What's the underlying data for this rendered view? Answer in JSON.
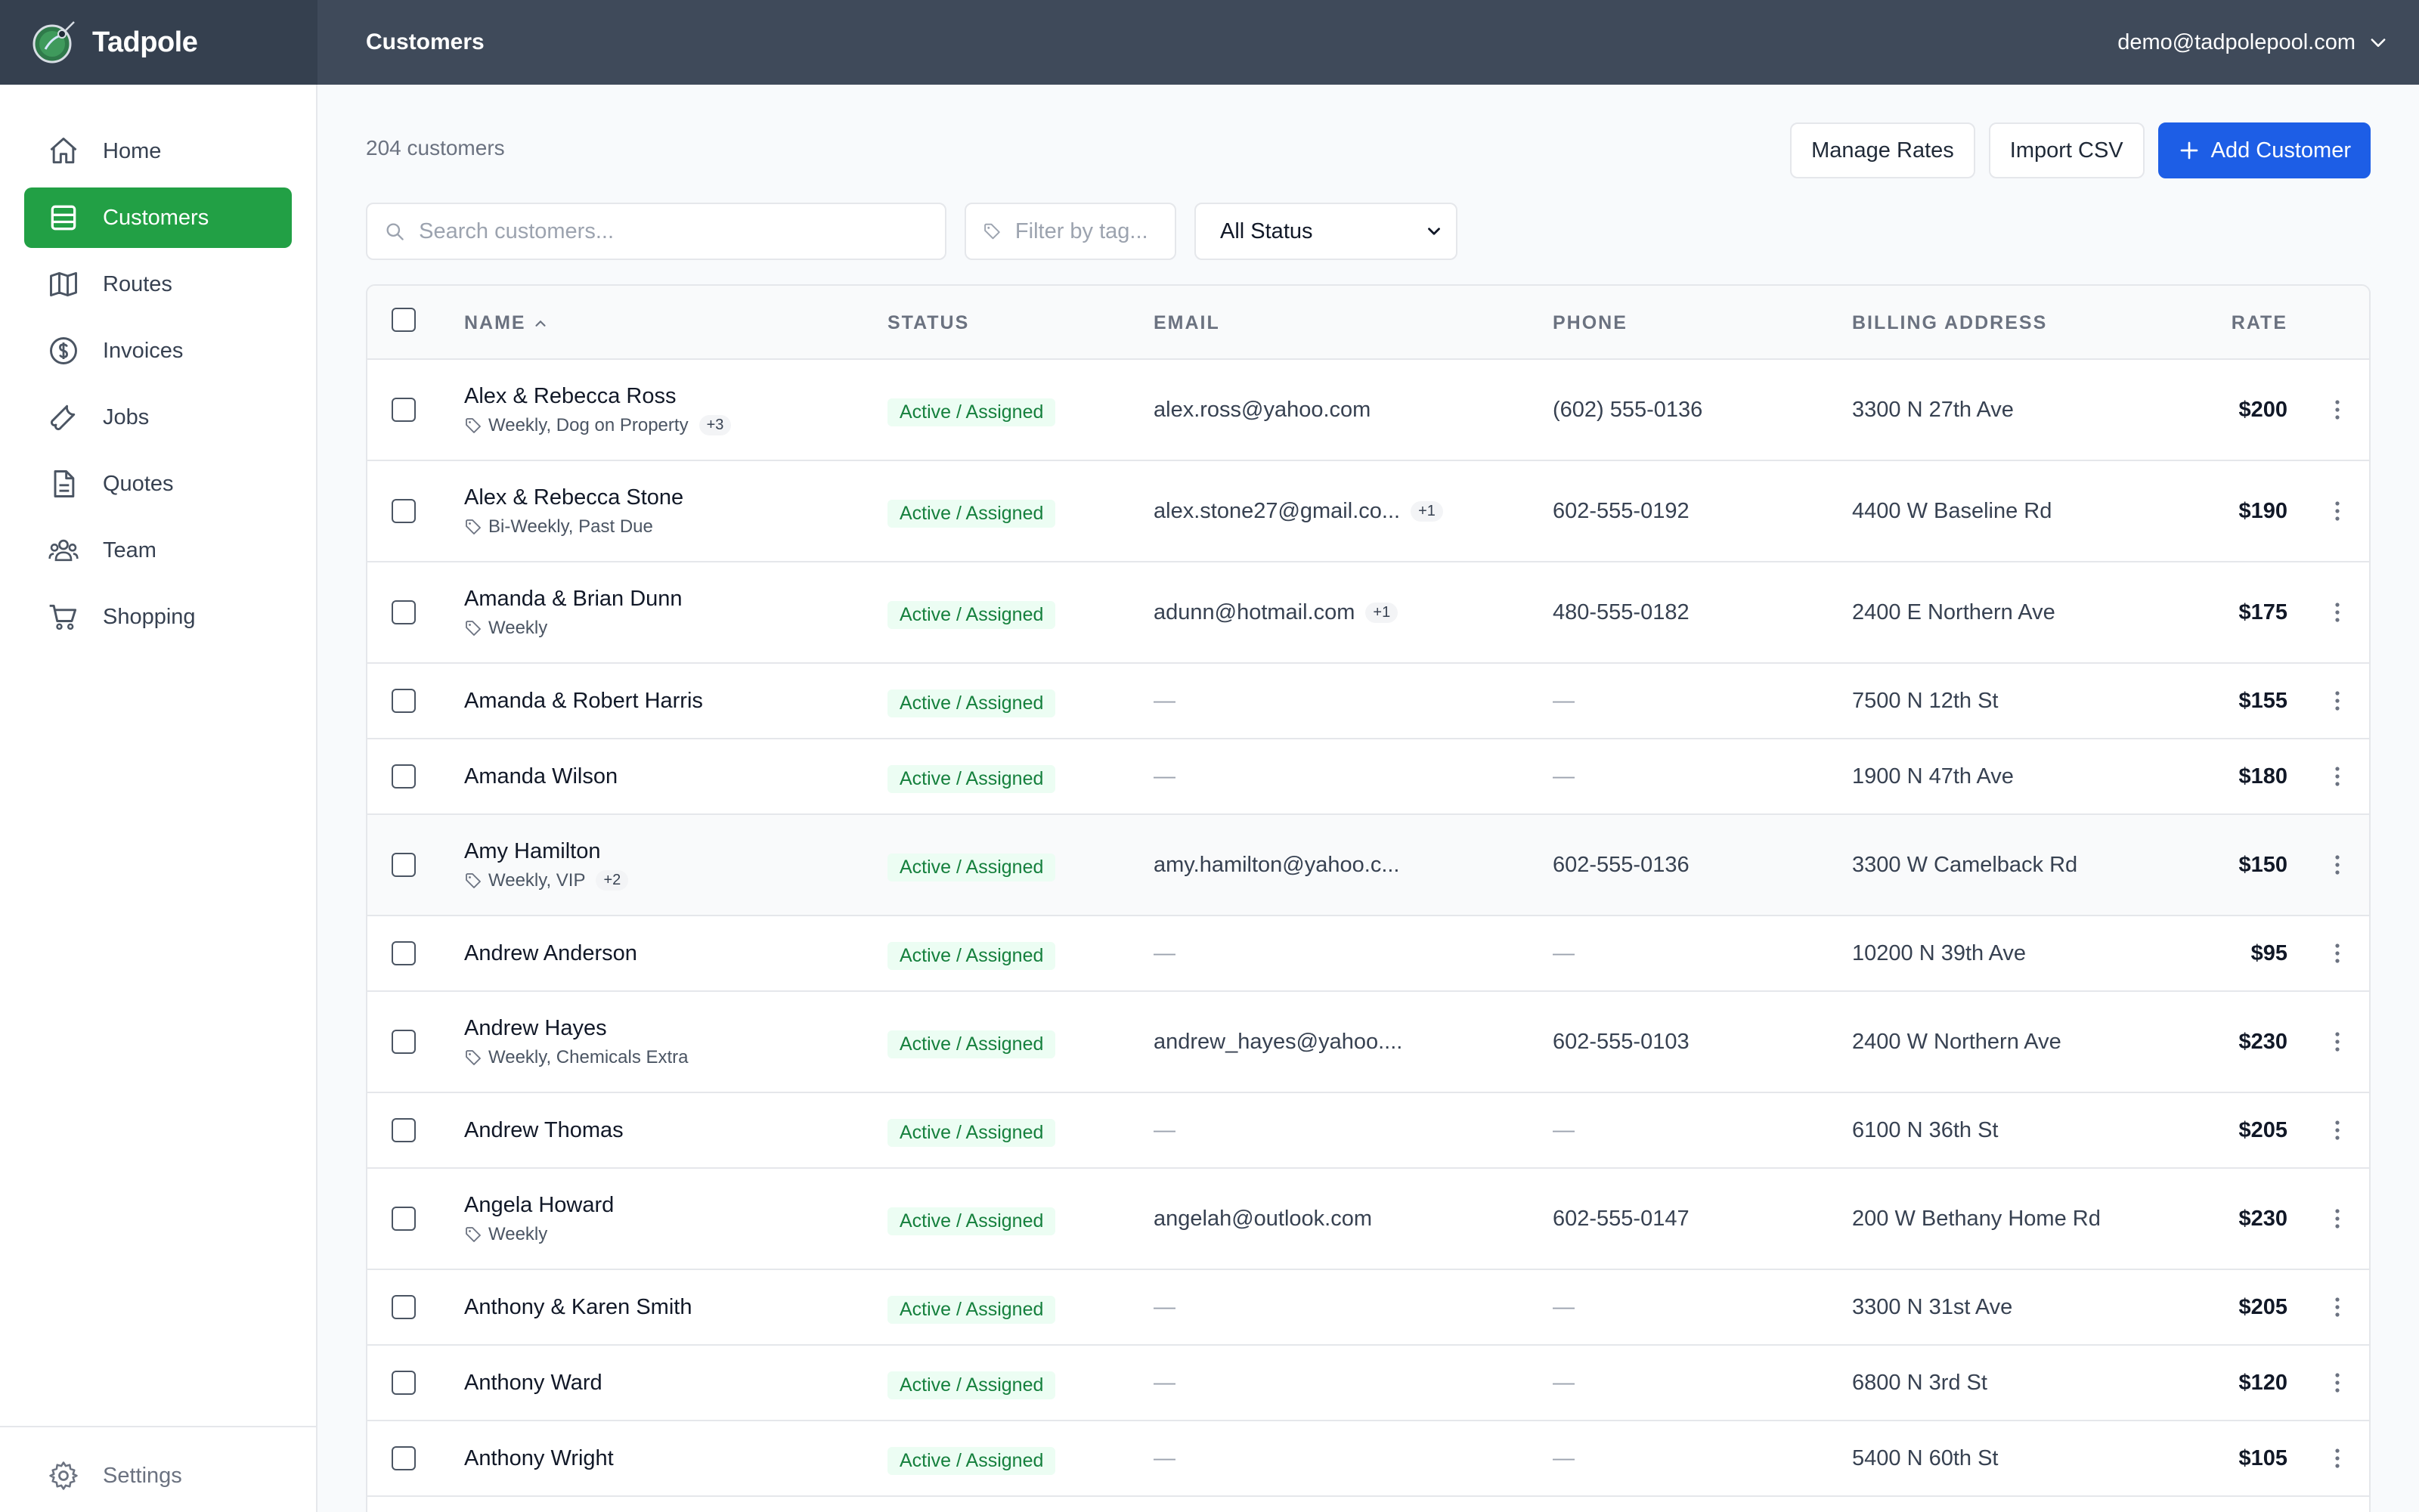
{
  "app": {
    "name": "Tadpole",
    "page_title": "Customers",
    "user_email": "demo@tadpolepool.com"
  },
  "colors": {
    "topbar": "#3f4a5a",
    "brand_bg": "#35404f",
    "active_nav": "#22a045",
    "primary": "#1d5ee6",
    "status_text": "#15803d",
    "status_bg": "#ecfdf3"
  },
  "sidebar": {
    "items": [
      {
        "label": "Home",
        "icon": "home-icon"
      },
      {
        "label": "Customers",
        "icon": "customers-icon",
        "active": true
      },
      {
        "label": "Routes",
        "icon": "map-icon"
      },
      {
        "label": "Invoices",
        "icon": "dollar-icon"
      },
      {
        "label": "Jobs",
        "icon": "wrench-icon"
      },
      {
        "label": "Quotes",
        "icon": "document-icon"
      },
      {
        "label": "Team",
        "icon": "team-icon"
      },
      {
        "label": "Shopping",
        "icon": "cart-icon"
      }
    ],
    "settings_label": "Settings"
  },
  "main": {
    "count_text": "204 customers",
    "buttons": {
      "manage_rates": "Manage Rates",
      "import_csv": "Import CSV",
      "add_customer": "Add Customer"
    },
    "search_placeholder": "Search customers...",
    "tag_placeholder": "Filter by tag...",
    "status_filter": "All Status"
  },
  "table": {
    "headers": {
      "name": "NAME",
      "status": "STATUS",
      "email": "EMAIL",
      "phone": "PHONE",
      "address": "BILLING ADDRESS",
      "rate": "RATE"
    },
    "rows": [
      {
        "name": "Alex & Rebecca Ross",
        "tags": "Weekly, Dog on Property",
        "tag_extra": "+3",
        "status": "Active / Assigned",
        "email": "alex.ross@yahoo.com",
        "email_extra": "",
        "phone": "(602) 555-0136",
        "address": "3300 N 27th Ave",
        "rate": "$200"
      },
      {
        "name": "Alex & Rebecca Stone",
        "tags": "Bi-Weekly, Past Due",
        "tag_extra": "",
        "status": "Active / Assigned",
        "email": "alex.stone27@gmail.co...",
        "email_extra": "+1",
        "phone": "602-555-0192",
        "address": "4400 W Baseline Rd",
        "rate": "$190"
      },
      {
        "name": "Amanda & Brian Dunn",
        "tags": "Weekly",
        "tag_extra": "",
        "status": "Active / Assigned",
        "email": "adunn@hotmail.com",
        "email_extra": "+1",
        "phone": "480-555-0182",
        "address": "2400 E Northern Ave",
        "rate": "$175"
      },
      {
        "name": "Amanda & Robert Harris",
        "tags": "",
        "tag_extra": "",
        "status": "Active / Assigned",
        "email": "—",
        "email_extra": "",
        "phone": "—",
        "address": "7500 N 12th St",
        "rate": "$155"
      },
      {
        "name": "Amanda Wilson",
        "tags": "",
        "tag_extra": "",
        "status": "Active / Assigned",
        "email": "—",
        "email_extra": "",
        "phone": "—",
        "address": "1900 N 47th Ave",
        "rate": "$180"
      },
      {
        "name": "Amy Hamilton",
        "tags": "Weekly, VIP",
        "tag_extra": "+2",
        "status": "Active / Assigned",
        "email": "amy.hamilton@yahoo.c...",
        "email_extra": "",
        "phone": "602-555-0136",
        "address": "3300 W Camelback Rd",
        "rate": "$150"
      },
      {
        "name": "Andrew Anderson",
        "tags": "",
        "tag_extra": "",
        "status": "Active / Assigned",
        "email": "—",
        "email_extra": "",
        "phone": "—",
        "address": "10200 N 39th Ave",
        "rate": "$95"
      },
      {
        "name": "Andrew Hayes",
        "tags": "Weekly, Chemicals Extra",
        "tag_extra": "",
        "status": "Active / Assigned",
        "email": "andrew_hayes@yahoo....",
        "email_extra": "",
        "phone": "602-555-0103",
        "address": "2400 W Northern Ave",
        "rate": "$230"
      },
      {
        "name": "Andrew Thomas",
        "tags": "",
        "tag_extra": "",
        "status": "Active / Assigned",
        "email": "—",
        "email_extra": "",
        "phone": "—",
        "address": "6100 N 36th St",
        "rate": "$205"
      },
      {
        "name": "Angela Howard",
        "tags": "Weekly",
        "tag_extra": "",
        "status": "Active / Assigned",
        "email": "angelah@outlook.com",
        "email_extra": "",
        "phone": "602-555-0147",
        "address": "200 W Bethany Home Rd",
        "rate": "$230"
      },
      {
        "name": "Anthony & Karen Smith",
        "tags": "",
        "tag_extra": "",
        "status": "Active / Assigned",
        "email": "—",
        "email_extra": "",
        "phone": "—",
        "address": "3300 N 31st Ave",
        "rate": "$205"
      },
      {
        "name": "Anthony Ward",
        "tags": "",
        "tag_extra": "",
        "status": "Active / Assigned",
        "email": "—",
        "email_extra": "",
        "phone": "—",
        "address": "6800 N 3rd St",
        "rate": "$120"
      },
      {
        "name": "Anthony Wright",
        "tags": "",
        "tag_extra": "",
        "status": "Active / Assigned",
        "email": "—",
        "email_extra": "",
        "phone": "—",
        "address": "5400 N 60th St",
        "rate": "$105"
      }
    ]
  }
}
